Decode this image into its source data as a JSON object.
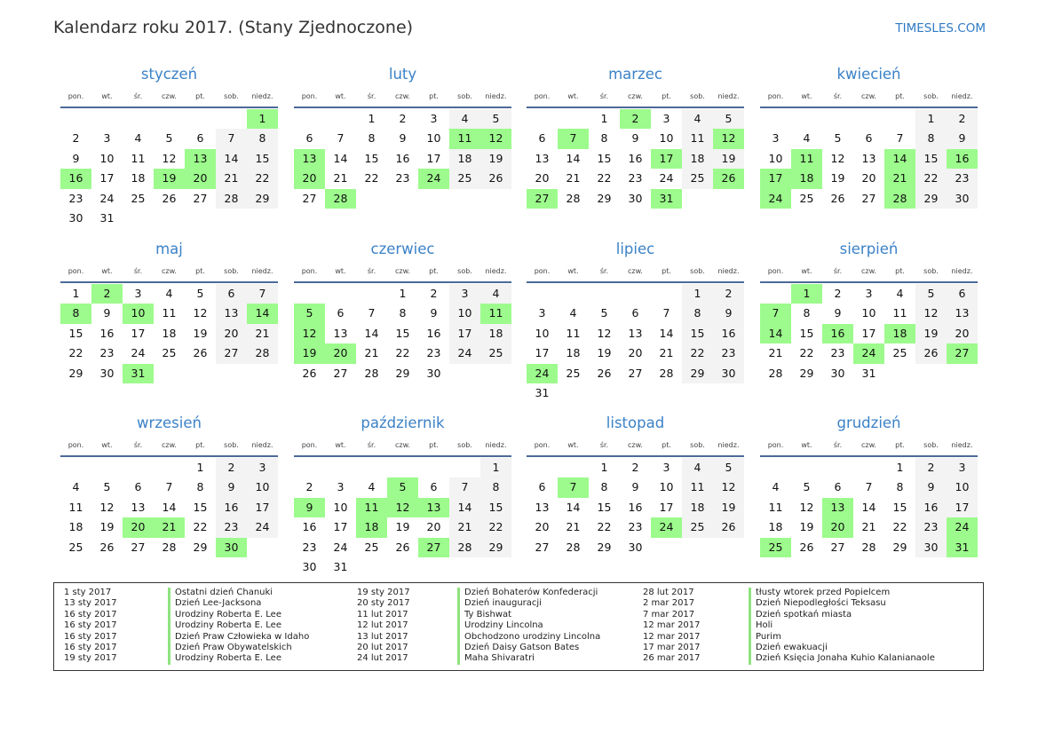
{
  "header": {
    "title": "Kalendarz roku 2017. (Stany Zjednoczone)",
    "site": "TIMESLES.COM"
  },
  "weekdays": [
    "pon.",
    "wt.",
    "śr.",
    "czw.",
    "pt.",
    "sob.",
    "niedz."
  ],
  "colors": {
    "holiday": "#9cfb8c",
    "weekend": "#f3f3f3",
    "month_title": "#3b82c7",
    "accent_line": "#4d6a98"
  },
  "months": [
    {
      "name": "styczeń",
      "cells": [
        null,
        null,
        null,
        null,
        null,
        null,
        1,
        2,
        3,
        4,
        5,
        6,
        7,
        8,
        9,
        10,
        11,
        12,
        13,
        14,
        15,
        16,
        17,
        18,
        19,
        20,
        21,
        22,
        23,
        24,
        25,
        26,
        27,
        28,
        29,
        30,
        31
      ],
      "holidays": [
        1,
        13,
        16,
        19,
        20
      ]
    },
    {
      "name": "luty",
      "cells": [
        null,
        null,
        1,
        2,
        3,
        4,
        5,
        6,
        7,
        8,
        9,
        10,
        11,
        12,
        13,
        14,
        15,
        16,
        17,
        18,
        19,
        20,
        21,
        22,
        23,
        24,
        25,
        26,
        27,
        28
      ],
      "holidays": [
        11,
        12,
        13,
        20,
        24,
        28
      ]
    },
    {
      "name": "marzec",
      "cells": [
        null,
        null,
        1,
        2,
        3,
        4,
        5,
        6,
        7,
        8,
        9,
        10,
        11,
        12,
        13,
        14,
        15,
        16,
        17,
        18,
        19,
        20,
        21,
        22,
        23,
        24,
        25,
        26,
        27,
        28,
        29,
        30,
        31
      ],
      "holidays": [
        2,
        7,
        12,
        17,
        26,
        27,
        31
      ]
    },
    {
      "name": "kwiecień",
      "cells": [
        null,
        null,
        null,
        null,
        null,
        1,
        2,
        3,
        4,
        5,
        6,
        7,
        8,
        9,
        10,
        11,
        12,
        13,
        14,
        15,
        16,
        17,
        18,
        19,
        20,
        21,
        22,
        23,
        24,
        25,
        26,
        27,
        28,
        29,
        30
      ],
      "holidays": [
        11,
        14,
        16,
        17,
        18,
        21,
        24,
        28
      ]
    },
    {
      "name": "maj",
      "cells": [
        1,
        2,
        3,
        4,
        5,
        6,
        7,
        8,
        9,
        10,
        11,
        12,
        13,
        14,
        15,
        16,
        17,
        18,
        19,
        20,
        21,
        22,
        23,
        24,
        25,
        26,
        27,
        28,
        29,
        30,
        31
      ],
      "holidays": [
        2,
        8,
        10,
        14,
        31
      ]
    },
    {
      "name": "czerwiec",
      "cells": [
        null,
        null,
        null,
        1,
        2,
        3,
        4,
        5,
        6,
        7,
        8,
        9,
        10,
        11,
        12,
        13,
        14,
        15,
        16,
        17,
        18,
        19,
        20,
        21,
        22,
        23,
        24,
        25,
        26,
        27,
        28,
        29,
        30
      ],
      "holidays": [
        5,
        11,
        12,
        19,
        20
      ]
    },
    {
      "name": "lipiec",
      "cells": [
        null,
        null,
        null,
        null,
        null,
        1,
        2,
        3,
        4,
        5,
        6,
        7,
        8,
        9,
        10,
        11,
        12,
        13,
        14,
        15,
        16,
        17,
        18,
        19,
        20,
        21,
        22,
        23,
        24,
        25,
        26,
        27,
        28,
        29,
        30,
        31
      ],
      "holidays": [
        24
      ]
    },
    {
      "name": "sierpień",
      "cells": [
        null,
        1,
        2,
        3,
        4,
        5,
        6,
        7,
        8,
        9,
        10,
        11,
        12,
        13,
        14,
        15,
        16,
        17,
        18,
        19,
        20,
        21,
        22,
        23,
        24,
        25,
        26,
        27,
        28,
        29,
        30,
        31
      ],
      "holidays": [
        1,
        7,
        14,
        16,
        18,
        24,
        27
      ]
    },
    {
      "name": "wrzesień",
      "cells": [
        null,
        null,
        null,
        null,
        1,
        2,
        3,
        4,
        5,
        6,
        7,
        8,
        9,
        10,
        11,
        12,
        13,
        14,
        15,
        16,
        17,
        18,
        19,
        20,
        21,
        22,
        23,
        24,
        25,
        26,
        27,
        28,
        29,
        30
      ],
      "holidays": [
        20,
        21,
        30
      ]
    },
    {
      "name": "październik",
      "cells": [
        null,
        null,
        null,
        null,
        null,
        null,
        1,
        2,
        3,
        4,
        5,
        6,
        7,
        8,
        9,
        10,
        11,
        12,
        13,
        14,
        15,
        16,
        17,
        18,
        19,
        20,
        21,
        22,
        23,
        24,
        25,
        26,
        27,
        28,
        29,
        30,
        31
      ],
      "holidays": [
        5,
        9,
        11,
        12,
        13,
        18,
        27
      ]
    },
    {
      "name": "listopad",
      "cells": [
        null,
        null,
        1,
        2,
        3,
        4,
        5,
        6,
        7,
        8,
        9,
        10,
        11,
        12,
        13,
        14,
        15,
        16,
        17,
        18,
        19,
        20,
        21,
        22,
        23,
        24,
        25,
        26,
        27,
        28,
        29,
        30
      ],
      "holidays": [
        7,
        24
      ]
    },
    {
      "name": "grudzień",
      "cells": [
        null,
        null,
        null,
        null,
        1,
        2,
        3,
        4,
        5,
        6,
        7,
        8,
        9,
        10,
        11,
        12,
        13,
        14,
        15,
        16,
        17,
        18,
        19,
        20,
        21,
        22,
        23,
        24,
        25,
        26,
        27,
        28,
        29,
        30,
        31
      ],
      "holidays": [
        13,
        20,
        24,
        25,
        31
      ]
    }
  ],
  "legend": [
    [
      {
        "date": "1 sty 2017",
        "name": "Ostatni dzień Chanuki"
      },
      {
        "date": "13 sty 2017",
        "name": "Dzień Lee-Jacksona"
      },
      {
        "date": "16 sty 2017",
        "name": "Urodziny Roberta E. Lee"
      },
      {
        "date": "16 sty 2017",
        "name": "Urodziny Roberta E. Lee"
      },
      {
        "date": "16 sty 2017",
        "name": "Dzień Praw Człowieka w Idaho"
      },
      {
        "date": "16 sty 2017",
        "name": "Dzień Praw Obywatelskich"
      },
      {
        "date": "19 sty 2017",
        "name": "Urodziny Roberta E. Lee"
      }
    ],
    [
      {
        "date": "19 sty 2017",
        "name": "Dzień Bohaterów Konfederacji"
      },
      {
        "date": "20 sty 2017",
        "name": "Dzień inauguracji"
      },
      {
        "date": "11 lut 2017",
        "name": "Ty Bishwat"
      },
      {
        "date": "12 lut 2017",
        "name": "Urodziny Lincolna"
      },
      {
        "date": "13 lut 2017",
        "name": "Obchodzono urodziny Lincolna"
      },
      {
        "date": "20 lut 2017",
        "name": "Dzień Daisy Gatson Bates"
      },
      {
        "date": "24 lut 2017",
        "name": "Maha Shivaratri"
      }
    ],
    [
      {
        "date": "28 lut 2017",
        "name": "tłusty wtorek przed Popielcem"
      },
      {
        "date": "2 mar 2017",
        "name": "Dzień Niepodległości Teksasu"
      },
      {
        "date": "7 mar 2017",
        "name": "Dzień spotkań miasta"
      },
      {
        "date": "12 mar 2017",
        "name": "Holi"
      },
      {
        "date": "12 mar 2017",
        "name": "Purim"
      },
      {
        "date": "17 mar 2017",
        "name": "Dzień ewakuacji"
      },
      {
        "date": "26 mar 2017",
        "name": "Dzień Księcia Jonaha Kuhio Kalanianaole"
      }
    ]
  ]
}
